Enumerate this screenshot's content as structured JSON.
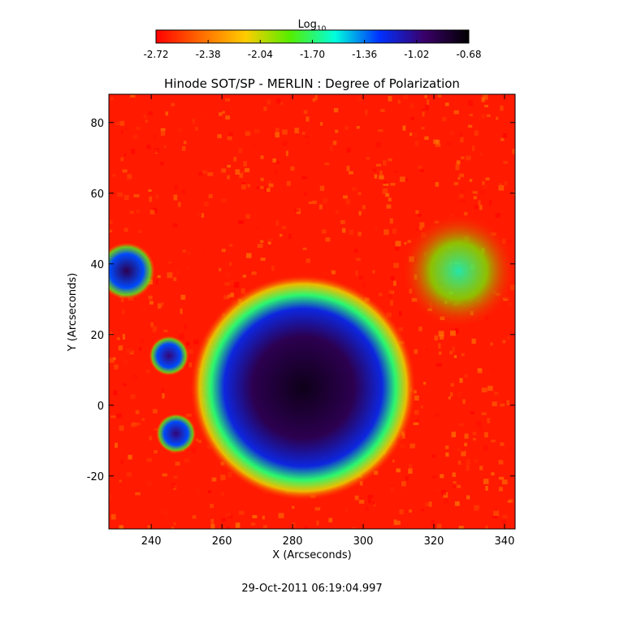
{
  "colorbar": {
    "label": "Log",
    "label_subscript": "10",
    "ticks": [
      "-2.72",
      "-2.38",
      "-2.04",
      "-1.70",
      "-1.36",
      "-1.02",
      "-0.68"
    ],
    "colors": [
      "#ff0000",
      "#ff6a00",
      "#ffcc00",
      "#55ee00",
      "#00ffdd",
      "#0030ff",
      "#3a006a",
      "#000000"
    ]
  },
  "timestamp": "29-Oct-2011 06:19:04.997",
  "chart_data": {
    "type": "heatmap",
    "title": "Hinode SOT/SP - MERLIN : Degree of Polarization",
    "xlabel": "X (Arcseconds)",
    "ylabel": "Y (Arcseconds)",
    "xlim": [
      228,
      343
    ],
    "ylim": [
      -35,
      88
    ],
    "x_ticks": [
      240,
      260,
      280,
      300,
      320,
      340
    ],
    "y_ticks": [
      -20,
      0,
      20,
      40,
      60,
      80
    ],
    "value_range": [
      -2.72,
      -0.68
    ],
    "value_unit": "Log10",
    "features": [
      {
        "kind": "sunspot",
        "x": 283,
        "y": 5,
        "r": 22,
        "value": -0.75
      },
      {
        "kind": "pore",
        "x": 233,
        "y": 38,
        "r": 5,
        "value": -0.9
      },
      {
        "kind": "pore",
        "x": 245,
        "y": 14,
        "r": 3.5,
        "value": -1.0
      },
      {
        "kind": "pore",
        "x": 247,
        "y": -8,
        "r": 3.5,
        "value": -1.0
      },
      {
        "kind": "plage",
        "x": 327,
        "y": 38,
        "r": 10,
        "value": -1.6
      }
    ]
  }
}
